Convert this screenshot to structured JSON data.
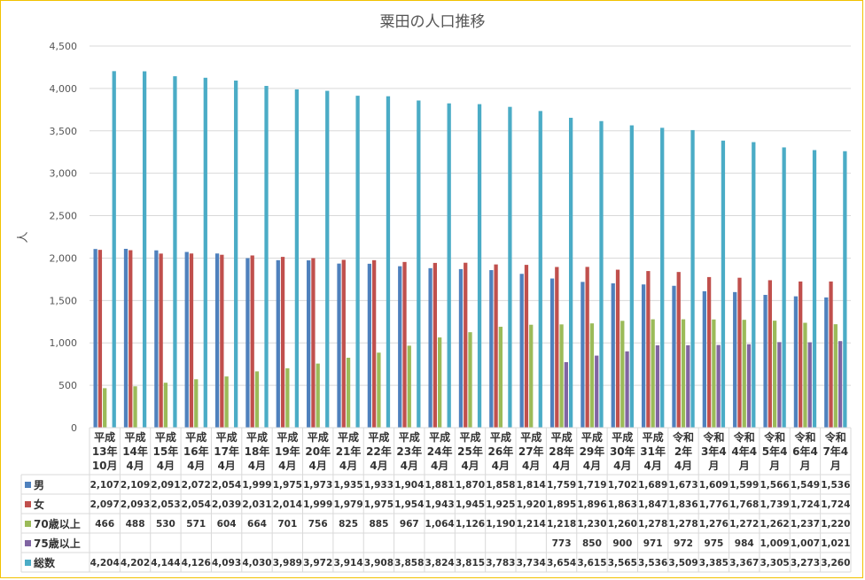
{
  "chart_data": {
    "type": "bar",
    "title": "粟田の人口推移",
    "ylabel": "人",
    "ylim": [
      0,
      4500
    ],
    "yticks": [
      "0",
      "500",
      "1,000",
      "1,500",
      "2,000",
      "2,500",
      "3,000",
      "3,500",
      "4,000",
      "4,500"
    ],
    "grid": true,
    "legend": "data-table",
    "categories": [
      [
        "平成",
        "13年",
        "10月"
      ],
      [
        "平成",
        "14年",
        "4月"
      ],
      [
        "平成",
        "15年",
        "4月"
      ],
      [
        "平成",
        "16年",
        "4月"
      ],
      [
        "平成",
        "17年",
        "4月"
      ],
      [
        "平成",
        "18年",
        "4月"
      ],
      [
        "平成",
        "19年",
        "4月"
      ],
      [
        "平成",
        "20年",
        "4月"
      ],
      [
        "平成",
        "21年",
        "4月"
      ],
      [
        "平成",
        "22年",
        "4月"
      ],
      [
        "平成",
        "23年",
        "4月"
      ],
      [
        "平成",
        "24年",
        "4月"
      ],
      [
        "平成",
        "25年",
        "4月"
      ],
      [
        "平成",
        "26年",
        "4月"
      ],
      [
        "平成",
        "27年",
        "4月"
      ],
      [
        "平成",
        "28年",
        "4月"
      ],
      [
        "平成",
        "29年",
        "4月"
      ],
      [
        "平成",
        "30年",
        "4月"
      ],
      [
        "平成",
        "31年",
        "4月"
      ],
      [
        "令和",
        "2年",
        "4月"
      ],
      [
        "令和",
        "3年4",
        "月"
      ],
      [
        "令和",
        "4年4",
        "月"
      ],
      [
        "令和",
        "5年4",
        "月"
      ],
      [
        "令和",
        "6年4",
        "月"
      ],
      [
        "令和",
        "7年4",
        "月"
      ]
    ],
    "series": [
      {
        "name": "男",
        "color": "#4f81bd",
        "values": [
          2107,
          2109,
          2091,
          2072,
          2054,
          1999,
          1975,
          1973,
          1935,
          1933,
          1904,
          1881,
          1870,
          1858,
          1814,
          1759,
          1719,
          1702,
          1689,
          1673,
          1609,
          1599,
          1566,
          1549,
          1536
        ],
        "labels": [
          "2,107",
          "2,109",
          "2,091",
          "2,072",
          "2,054",
          "1,999",
          "1,975",
          "1,973",
          "1,935",
          "1,933",
          "1,904",
          "1,881",
          "1,870",
          "1,858",
          "1,814",
          "1,759",
          "1,719",
          "1,702",
          "1,689",
          "1,673",
          "1,609",
          "1,599",
          "1,566",
          "1,549",
          "1,536"
        ]
      },
      {
        "name": "女",
        "color": "#c0504d",
        "values": [
          2097,
          2093,
          2053,
          2054,
          2039,
          2031,
          2014,
          1999,
          1979,
          1975,
          1954,
          1943,
          1945,
          1925,
          1920,
          1895,
          1896,
          1863,
          1847,
          1836,
          1776,
          1768,
          1739,
          1724,
          1724
        ],
        "labels": [
          "2,097",
          "2,093",
          "2,053",
          "2,054",
          "2,039",
          "2,031",
          "2,014",
          "1,999",
          "1,979",
          "1,975",
          "1,954",
          "1,943",
          "1,945",
          "1,925",
          "1,920",
          "1,895",
          "1,896",
          "1,863",
          "1,847",
          "1,836",
          "1,776",
          "1,768",
          "1,739",
          "1,724",
          "1,724"
        ]
      },
      {
        "name": "70歳以上",
        "color": "#9bbb59",
        "values": [
          466,
          488,
          530,
          571,
          604,
          664,
          701,
          756,
          825,
          885,
          967,
          1064,
          1126,
          1190,
          1214,
          1218,
          1230,
          1260,
          1278,
          1278,
          1276,
          1272,
          1262,
          1237,
          1220
        ],
        "labels": [
          "466",
          "488",
          "530",
          "571",
          "604",
          "664",
          "701",
          "756",
          "825",
          "885",
          "967",
          "1,064",
          "1,126",
          "1,190",
          "1,214",
          "1,218",
          "1,230",
          "1,260",
          "1,278",
          "1,278",
          "1,276",
          "1,272",
          "1,262",
          "1,237",
          "1,220"
        ]
      },
      {
        "name": "75歳以上",
        "color": "#8064a2",
        "values": [
          null,
          null,
          null,
          null,
          null,
          null,
          null,
          null,
          null,
          null,
          null,
          null,
          null,
          null,
          null,
          773,
          850,
          900,
          971,
          972,
          975,
          984,
          1009,
          1007,
          1021
        ],
        "labels": [
          "",
          "",
          "",
          "",
          "",
          "",
          "",
          "",
          "",
          "",
          "",
          "",
          "",
          "",
          "",
          "773",
          "850",
          "900",
          "971",
          "972",
          "975",
          "984",
          "1,009",
          "1,007",
          "1,021"
        ]
      },
      {
        "name": "総数",
        "color": "#4bacc6",
        "values": [
          4204,
          4202,
          4144,
          4126,
          4093,
          4030,
          3989,
          3972,
          3914,
          3908,
          3858,
          3824,
          3815,
          3783,
          3734,
          3654,
          3615,
          3565,
          3536,
          3509,
          3385,
          3367,
          3305,
          3273,
          3260
        ],
        "labels": [
          "4,204",
          "4,202",
          "4,144",
          "4,126",
          "4,093",
          "4,030",
          "3,989",
          "3,972",
          "3,914",
          "3,908",
          "3,858",
          "3,824",
          "3,815",
          "3,783",
          "3,734",
          "3,654",
          "3,615",
          "3,565",
          "3,536",
          "3,509",
          "3,385",
          "3,367",
          "3,305",
          "3,273",
          "3,260"
        ]
      }
    ]
  }
}
